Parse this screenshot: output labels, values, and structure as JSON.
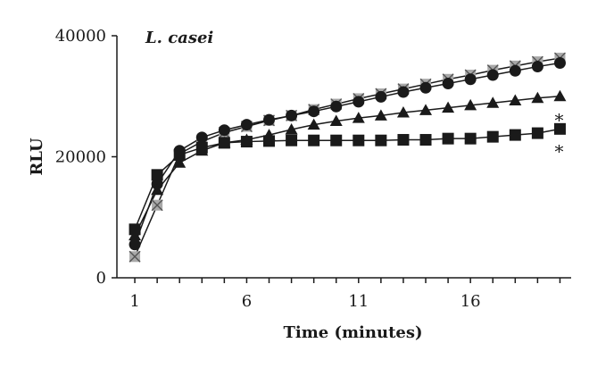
{
  "chart_data": {
    "type": "line",
    "title": "L. casei",
    "xlabel": "Time (minutes)",
    "ylabel": "RLU",
    "xlim": [
      0.2,
      20.5
    ],
    "ylim": [
      0,
      40000
    ],
    "x_ticks": [
      1,
      6,
      11,
      16
    ],
    "y_ticks": [
      0,
      20000,
      40000
    ],
    "grid": false,
    "x": [
      1,
      2,
      3,
      4,
      5,
      6,
      7,
      8,
      9,
      10,
      11,
      12,
      13,
      14,
      15,
      16,
      17,
      18,
      19,
      20
    ],
    "series": [
      {
        "marker": "x-grey",
        "values": [
          3500,
          12000,
          20500,
          22500,
          24000,
          25000,
          26000,
          26800,
          27800,
          28700,
          29600,
          30400,
          31200,
          32000,
          32800,
          33500,
          34300,
          35000,
          35700,
          36300
        ]
      },
      {
        "marker": "circle",
        "values": [
          5500,
          15500,
          21000,
          23200,
          24400,
          25300,
          26100,
          26800,
          27500,
          28300,
          29100,
          29900,
          30700,
          31400,
          32100,
          32800,
          33500,
          34200,
          34900,
          35500
        ]
      },
      {
        "marker": "triangle",
        "values": [
          7000,
          14500,
          19000,
          21000,
          22300,
          22800,
          23600,
          24500,
          25300,
          25900,
          26400,
          26800,
          27300,
          27700,
          28100,
          28500,
          28900,
          29300,
          29700,
          30000
        ]
      },
      {
        "marker": "square",
        "values": [
          8000,
          17000,
          20300,
          21500,
          22300,
          22500,
          22600,
          22700,
          22700,
          22700,
          22700,
          22700,
          22800,
          22800,
          23000,
          23000,
          23300,
          23600,
          23900,
          24600
        ]
      }
    ],
    "annotations": [
      {
        "text": "*",
        "x": 20,
        "y": 26500
      },
      {
        "text": "*",
        "x": 20,
        "y": 21300
      }
    ],
    "colors": {
      "axis": "#1a1a1a",
      "line": "#1a1a1a",
      "marker_dark": "#1a1a1a",
      "marker_grey": "#a8a8a8"
    }
  }
}
